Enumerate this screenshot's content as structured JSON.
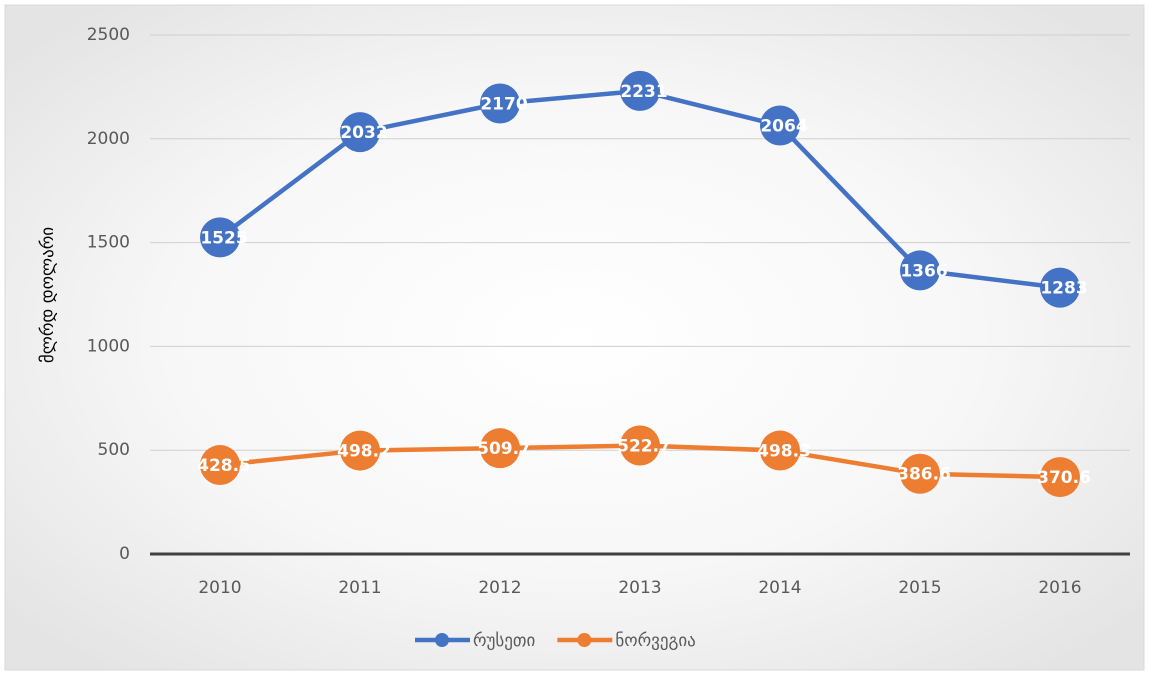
{
  "chart_data": {
    "type": "line",
    "y_label": "მლრდ დოლარი",
    "categories": [
      "2010",
      "2011",
      "2012",
      "2013",
      "2014",
      "2015",
      "2016"
    ],
    "series": [
      {
        "name": "რუსეთი",
        "color": "#4472c4",
        "values": [
          1525,
          2032,
          2170,
          2231,
          2064,
          1366,
          1283
        ]
      },
      {
        "name": "ნორვეგია",
        "color": "#ed7d31",
        "values": [
          428.5,
          498.2,
          509.7,
          522.7,
          498.3,
          386.6,
          370.6
        ]
      }
    ],
    "ylim": [
      0,
      2500
    ],
    "yticks": [
      0,
      500,
      1000,
      1500,
      2000,
      2500
    ],
    "grid": true,
    "legend": "bottom"
  }
}
